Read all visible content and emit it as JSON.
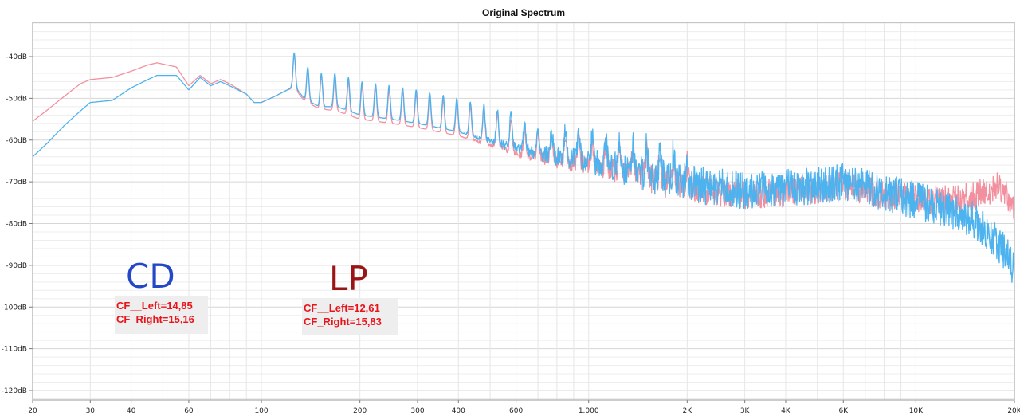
{
  "chart_data": {
    "type": "line",
    "title": "Original Spectrum",
    "xscale": "log",
    "xlim": [
      20,
      20000
    ],
    "ylim": [
      -122,
      -30
    ],
    "x_ticks": [
      {
        "value": 20,
        "label": "20"
      },
      {
        "value": 30,
        "label": "30"
      },
      {
        "value": 40,
        "label": "40"
      },
      {
        "value": 60,
        "label": "60"
      },
      {
        "value": 100,
        "label": "100"
      },
      {
        "value": 200,
        "label": "200"
      },
      {
        "value": 300,
        "label": "300"
      },
      {
        "value": 400,
        "label": "400"
      },
      {
        "value": 600,
        "label": "600"
      },
      {
        "value": 1000,
        "label": "1.000"
      },
      {
        "value": 2000,
        "label": "2K"
      },
      {
        "value": 3000,
        "label": "3K"
      },
      {
        "value": 4000,
        "label": "4K"
      },
      {
        "value": 6000,
        "label": "6K"
      },
      {
        "value": 10000,
        "label": "10K"
      },
      {
        "value": 20000,
        "label": "20K"
      }
    ],
    "y_ticks": [
      {
        "value": -40,
        "label": "-40dB"
      },
      {
        "value": -50,
        "label": "-50dB"
      },
      {
        "value": -60,
        "label": "-60dB"
      },
      {
        "value": -70,
        "label": "-70dB"
      },
      {
        "value": -80,
        "label": "-80dB"
      },
      {
        "value": -90,
        "label": "-90dB"
      },
      {
        "value": -100,
        "label": "-100dB"
      },
      {
        "value": -110,
        "label": "-110dB"
      },
      {
        "value": -120,
        "label": "-120dB"
      }
    ],
    "series": [
      {
        "name": "CD",
        "color": "#4db3ef",
        "x": [
          20,
          22,
          25,
          28,
          30,
          35,
          40,
          45,
          48,
          55,
          60,
          65,
          70,
          75,
          80,
          90,
          95,
          100,
          110,
          120,
          126,
          135,
          150,
          170,
          200,
          250,
          300,
          400,
          600,
          800,
          1000,
          1500,
          2000,
          3000,
          4000,
          5000,
          6000,
          7000,
          8000,
          10000,
          12000,
          15000,
          18000,
          20000
        ],
        "values": [
          -64,
          -61,
          -56.5,
          -53,
          -51,
          -50.5,
          -47.5,
          -45.5,
          -44.5,
          -44.5,
          -48,
          -45,
          -47,
          -46,
          -47,
          -49,
          -51,
          -51,
          -49.5,
          -48,
          -47,
          -50,
          -52,
          -52,
          -54,
          -55,
          -56,
          -58,
          -62,
          -64,
          -65,
          -68,
          -70.5,
          -72,
          -71.5,
          -71,
          -70,
          -71,
          -72.5,
          -74.5,
          -76,
          -79,
          -85,
          -91
        ]
      },
      {
        "name": "LP",
        "color": "#f2909f",
        "x": [
          20,
          22,
          25,
          28,
          30,
          35,
          40,
          45,
          48,
          55,
          60,
          65,
          70,
          75,
          80,
          90,
          95,
          100,
          110,
          120,
          126,
          135,
          150,
          170,
          200,
          250,
          300,
          400,
          600,
          800,
          1000,
          1500,
          2000,
          3000,
          4000,
          5000,
          6000,
          7000,
          8000,
          10000,
          12000,
          15000,
          18000,
          20000
        ],
        "values": [
          -55.5,
          -53,
          -49.5,
          -46.5,
          -45.5,
          -45,
          -43.5,
          -42,
          -41.5,
          -42.5,
          -47,
          -44.5,
          -46.5,
          -45.5,
          -46.5,
          -49,
          -51,
          -51,
          -49.5,
          -48,
          -47.5,
          -50.5,
          -52.5,
          -53,
          -55,
          -56,
          -57,
          -59,
          -63,
          -65,
          -66,
          -69,
          -71.5,
          -73,
          -72.5,
          -72,
          -71,
          -72,
          -73,
          -74,
          -74.5,
          -73.5,
          -71,
          -76
        ]
      }
    ],
    "annotations": {
      "cd_label": "CD",
      "lp_label": "LP",
      "cd_box": [
        "CF__Left=14,85",
        "CF_Right=15,16"
      ],
      "lp_box": [
        "CF__Left=12,61",
        "CF_Right=15,83"
      ],
      "box_background": "#eeeeee"
    }
  }
}
